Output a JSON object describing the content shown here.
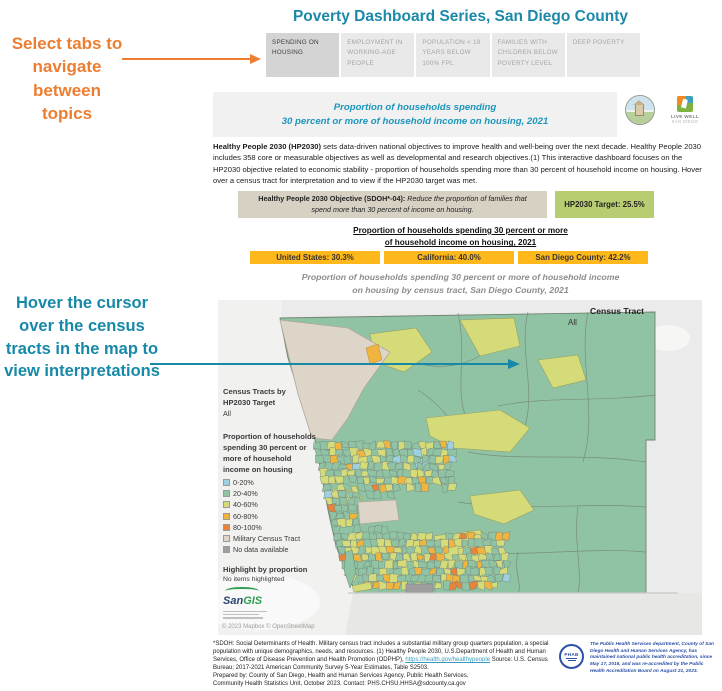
{
  "annotations": {
    "tabs_note": "Select tabs to navigate between topics",
    "map_note": "Hover the cursor over the census tracts in the map to view interpretations"
  },
  "title": "Poverty Dashboard Series, San Diego County",
  "tabs": [
    {
      "label": "SPENDING ON HOUSING",
      "active": true
    },
    {
      "label": "EMPLOYMENT IN WORKING-AGE PEOPLE",
      "active": false
    },
    {
      "label": "POPULATION < 18 YEARS BELOW 100% FPL",
      "active": false
    },
    {
      "label": "FAMILIES WITH CHILDREN BELOW POVERTY LEVEL",
      "active": false
    },
    {
      "label": "DEEP POVERTY",
      "active": false
    }
  ],
  "header": {
    "line1": "Proportion of households spending",
    "line2": "30 percent or more of household income on housing, 2021",
    "logos": {
      "county_seal": "County of San Diego seal",
      "live_well_line1": "LIVE WELL",
      "live_well_line2": "SAN DIEGO"
    }
  },
  "intro": {
    "bold": "Healthy People 2030 (HP2030)",
    "text": " sets data-driven national objectives to improve health and well-being over the next decade. Healthy People 2030 includes 358 core or measurable objectives as well as developmental and research objectives.(1) This interactive dashboard focuses on the HP2030 objective related to economic stability - proportion of households spending more than 30 percent of household income on housing. Hover over a census tract for interpretation and to view if the HP2030 target was met."
  },
  "objective": {
    "label": "Healthy People 2030 Objective (SDOH*-04):",
    "text": " Reduce the proportion of families that spend more than 30 percent of income on housing.",
    "target": "HP2030 Target: 25.5%"
  },
  "stats": {
    "heading_line1": "Proportion of households spending 30 percent or more",
    "heading_line2": "of household income on housing, 2021",
    "bars": [
      {
        "label": "United States: 30.3%",
        "value": 30.3
      },
      {
        "label": "California: 40.0%",
        "value": 40.0
      },
      {
        "label": "San Diego County: 42.2%",
        "value": 42.2
      }
    ]
  },
  "map": {
    "title_line1": "Proportion of households spending 30 percent or more of household income",
    "title_line2": "on housing by census tract, San Diego County, 2021",
    "filter_label": "Census Tract",
    "filter_value": "All",
    "legend_group_line1": "Census Tracts by",
    "legend_group_line2": "HP2030 Target",
    "legend_group_value": "All",
    "legend_title": "Proportion of households spending 30 percent or more of household income on housing",
    "legend_items": [
      {
        "label": "0-20%",
        "color": "#9FD0E0"
      },
      {
        "label": "20-40%",
        "color": "#90C3A4"
      },
      {
        "label": "40-60%",
        "color": "#D6DB79"
      },
      {
        "label": "60-80%",
        "color": "#F0B53E"
      },
      {
        "label": "80-100%",
        "color": "#E8833A"
      },
      {
        "label": "Military Census Tract",
        "color": "#DDD5C7"
      },
      {
        "label": "No data available",
        "color": "#9E9E9E"
      }
    ],
    "highlight_label": "Highlight by proportion",
    "highlight_status": "No items highlighted",
    "sangis_san": "San",
    "sangis_gis": "GIS",
    "attribution": "© 2023 Mapbox © OpenStreetMap"
  },
  "footer": {
    "footnote_before_link": "*SDOH: Social Determinants of Health. Military census tract includes a substantial military group quarters population, a special population with unique demographics, needs, and resources. (1) Healthy People 2030, U.S.Department of Health and Human Services, Office of Disease Prevention and Health Promotion (ODPHP), ",
    "footnote_link": "https://health.gov/healthypeople",
    "footnote_after_link": " Source: U.S. Census Bureau; 2017-2021 American Community Survey 5-Year Estimates, Table S2503.",
    "footnote_line2": "Prepared by: County of San Diego, Health and Human Services Agency, Public Health Services,",
    "footnote_line3": "Community Health Statistics Unit, October 2023. Contact: PHS.CHSU.HHSA@sdcounty.ca.gov",
    "badge_text": "PHAB",
    "accreditation": "The Public Health Services department, County of San Diego Health and Human Services Agency, has maintained national public health accreditation, since May 17, 2016, and was re-accredited by the Public Health Accreditation Board on August 21, 2023."
  },
  "colors": {
    "accent_teal": "#1C89A9",
    "annotation_orange": "#ED7D31",
    "annotation_teal": "#1789A8",
    "stat_bar": "#FFB81C",
    "objective_box": "#D7D1C4",
    "target_box": "#B8CD72",
    "map_background": "#EBEBEB",
    "tract_border": "#76867C"
  }
}
